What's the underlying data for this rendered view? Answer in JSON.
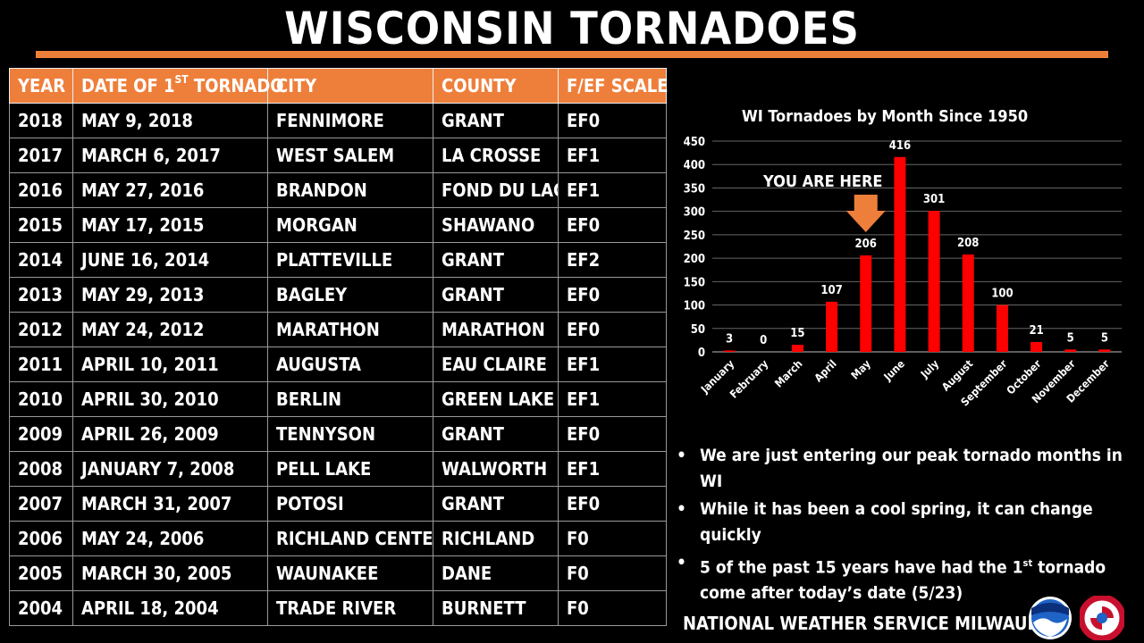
{
  "header": {
    "title": "WISCONSIN TORNADOES"
  },
  "table": {
    "columns": {
      "year": "YEAR",
      "date_a": "DATE OF 1",
      "date_sup": "ST",
      "date_b": " TORNADO",
      "city": "CITY",
      "county": "COUNTY",
      "scale": "F/EF SCALE"
    },
    "rows": [
      {
        "year": "2018",
        "date": "MAY 9, 2018",
        "city": "FENNIMORE",
        "county": "GRANT",
        "scale": "EF0"
      },
      {
        "year": "2017",
        "date": "MARCH 6, 2017",
        "city": "WEST SALEM",
        "county": "LA CROSSE",
        "scale": "EF1"
      },
      {
        "year": "2016",
        "date": "MAY 27, 2016",
        "city": "BRANDON",
        "county": "FOND DU LAC",
        "scale": "EF1"
      },
      {
        "year": "2015",
        "date": "MAY 17, 2015",
        "city": "MORGAN",
        "county": "SHAWANO",
        "scale": "EF0"
      },
      {
        "year": "2014",
        "date": "JUNE 16, 2014",
        "city": "PLATTEVILLE",
        "county": "GRANT",
        "scale": "EF2"
      },
      {
        "year": "2013",
        "date": "MAY 29, 2013",
        "city": "BAGLEY",
        "county": "GRANT",
        "scale": "EF0"
      },
      {
        "year": "2012",
        "date": "MAY 24, 2012",
        "city": "MARATHON",
        "county": "MARATHON",
        "scale": "EF0"
      },
      {
        "year": "2011",
        "date": "APRIL 10, 2011",
        "city": "AUGUSTA",
        "county": "EAU CLAIRE",
        "scale": "EF1"
      },
      {
        "year": "2010",
        "date": "APRIL 30, 2010",
        "city": "BERLIN",
        "county": "GREEN LAKE",
        "scale": "EF1"
      },
      {
        "year": "2009",
        "date": "APRIL 26, 2009",
        "city": "TENNYSON",
        "county": "GRANT",
        "scale": "EF0"
      },
      {
        "year": "2008",
        "date": "JANUARY 7, 2008",
        "city": "PELL LAKE",
        "county": "WALWORTH",
        "scale": "EF1"
      },
      {
        "year": "2007",
        "date": "MARCH 31, 2007",
        "city": "POTOSI",
        "county": "GRANT",
        "scale": "EF0"
      },
      {
        "year": "2006",
        "date": "MAY 24, 2006",
        "city": "RICHLAND CENTER",
        "county": "RICHLAND",
        "scale": "F0"
      },
      {
        "year": "2005",
        "date": "MARCH 30, 2005",
        "city": "WAUNAKEE",
        "county": "DANE",
        "scale": "F0"
      },
      {
        "year": "2004",
        "date": "APRIL 18, 2004",
        "city": "TRADE RIVER",
        "county": "BURNETT",
        "scale": "F0"
      }
    ]
  },
  "chart_data": {
    "type": "bar",
    "title": "WI Tornadoes by Month Since 1950",
    "categories": [
      "January",
      "February",
      "March",
      "April",
      "May",
      "June",
      "July",
      "August",
      "September",
      "October",
      "November",
      "December"
    ],
    "values": [
      3,
      0,
      15,
      107,
      206,
      416,
      301,
      208,
      100,
      21,
      5,
      5
    ],
    "ylim": [
      0,
      450
    ],
    "yticks": [
      0,
      50,
      100,
      150,
      200,
      250,
      300,
      350,
      400,
      450
    ],
    "bar_color": "#ff0000",
    "grid": true,
    "annotation": {
      "text": "YOU ARE HERE",
      "category": "May",
      "arrow_color": "#ee7f3b"
    }
  },
  "bullets": [
    {
      "text": "We are just entering our peak tornado months in WI"
    },
    {
      "text": "While it has been a cool spring, it can change quickly"
    },
    {
      "text_a": "5 of the past 15 years have had the 1",
      "sup": "st",
      "text_b": " tornado come after today’s date (5/23)"
    }
  ],
  "footer": {
    "text": "NATIONAL WEATHER SERVICE MILWAUKEE"
  },
  "colors": {
    "accent": "#ee7f3b",
    "background": "#000000",
    "noaa_blue": "#1e63c6"
  },
  "logos": [
    "noaa-logo",
    "national-weather-service-logo"
  ]
}
